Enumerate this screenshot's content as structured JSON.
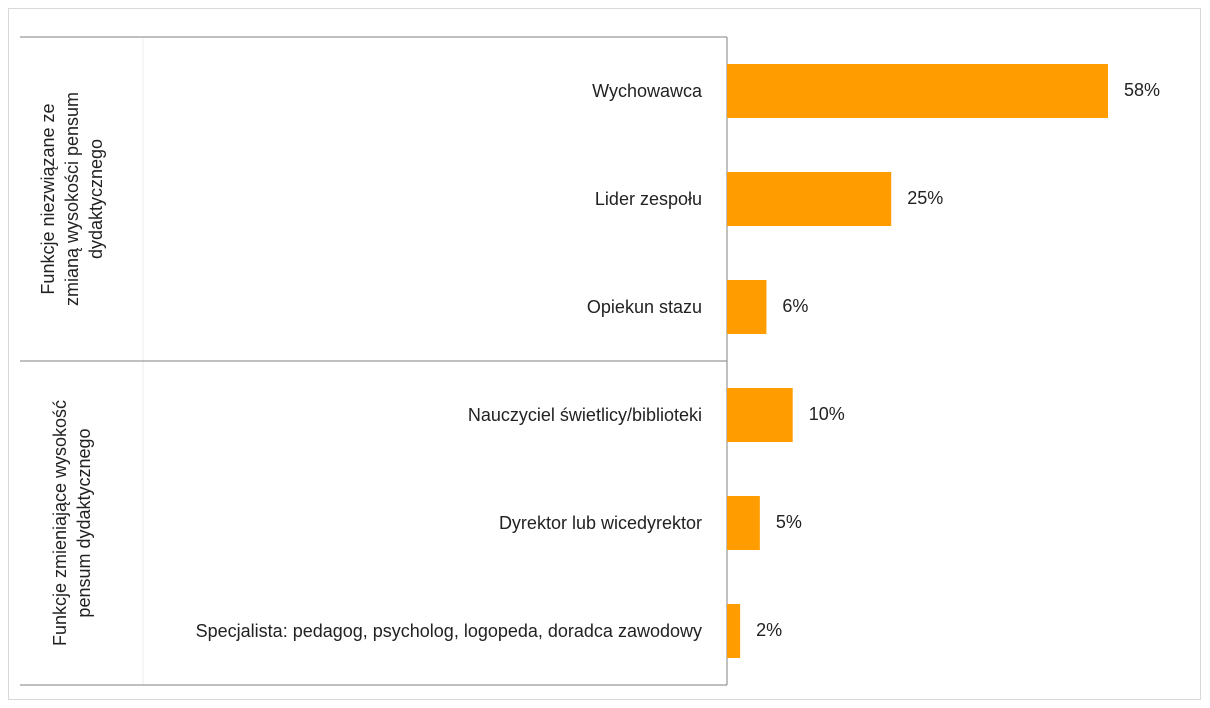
{
  "chart_data": {
    "type": "bar",
    "orientation": "horizontal",
    "color": "#ff9c00",
    "groups": [
      {
        "name": "Funkcje niezwiązane ze zmianą wysokości pensum dydaktycznego",
        "categories": [
          "Wychowawca",
          "Lider zespołu",
          "Opiekun stazu"
        ],
        "values": [
          58,
          25,
          6
        ],
        "value_labels": [
          "58%",
          "25%",
          "6%"
        ]
      },
      {
        "name": "Funkcje zmieniające wysokość pensum dydaktycznego",
        "categories": [
          "Nauczyciel świetlicy/biblioteki",
          "Dyrektor lub wicedyrektor",
          "Specjalista: pedagog, psycholog, logopeda, doradca zawodowy"
        ],
        "values": [
          10,
          5,
          2
        ],
        "value_labels": [
          "10%",
          "5%",
          "2%"
        ]
      }
    ]
  }
}
